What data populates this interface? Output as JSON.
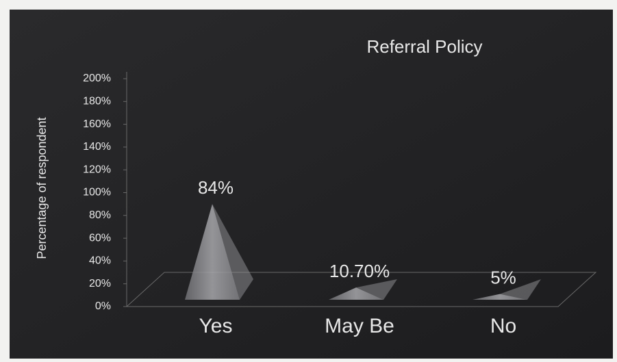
{
  "chart_data": {
    "type": "pyramid",
    "title": "Referral Policy",
    "y_label": "Percentage of respondent",
    "categories": [
      "Yes",
      "May Be",
      "No"
    ],
    "values": [
      84,
      10.7,
      5
    ],
    "value_labels": [
      "84%",
      "10.70%",
      "5%"
    ],
    "color": "#8a8a8e",
    "ylim": [
      0,
      200
    ],
    "yticks": [
      {
        "value": 0,
        "label": "0%"
      },
      {
        "value": 20,
        "label": "20%"
      },
      {
        "value": 40,
        "label": "40%"
      },
      {
        "value": 60,
        "label": "60%"
      },
      {
        "value": 80,
        "label": "80%"
      },
      {
        "value": 100,
        "label": "100%"
      },
      {
        "value": 120,
        "label": "120%"
      },
      {
        "value": 140,
        "label": "140%"
      },
      {
        "value": 160,
        "label": "160%"
      },
      {
        "value": 180,
        "label": "180%"
      },
      {
        "value": 200,
        "label": "200%"
      }
    ]
  }
}
